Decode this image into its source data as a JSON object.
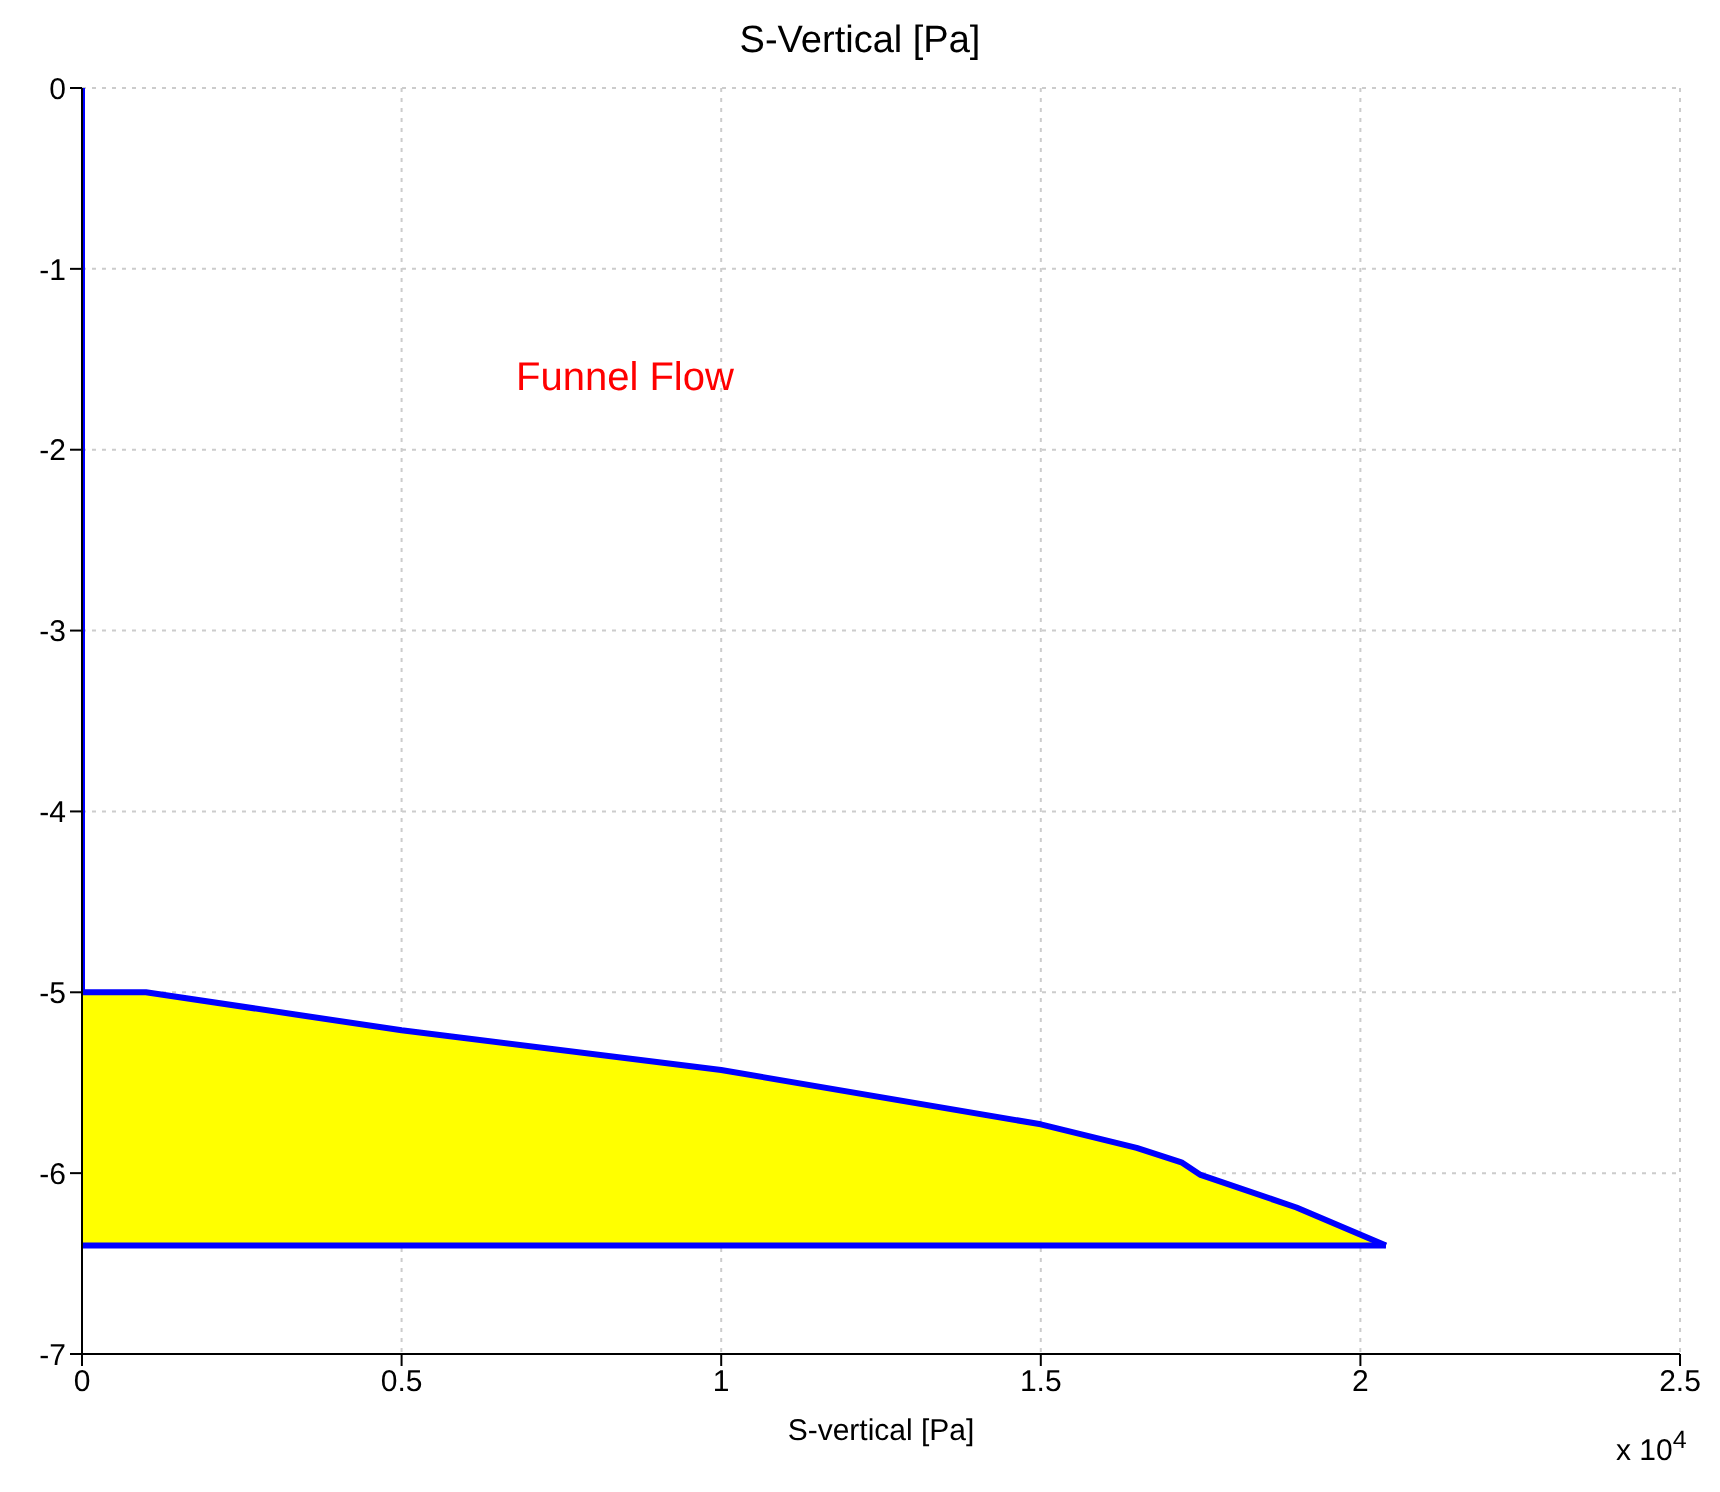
{
  "chart_data": {
    "type": "line",
    "title": "S-Vertical [Pa]",
    "xlabel": "S-vertical [Pa]",
    "annotations": [
      "Funnel Flow",
      "x 10$^{4}$"
    ],
    "xlim": [
      0,
      2.5
    ],
    "xticks": [
      0,
      0.5,
      1,
      1.5,
      2,
      2.5
    ],
    "ylim": [
      -7,
      0
    ],
    "yticks": [
      -7,
      -6,
      -5,
      -4,
      -3,
      -2,
      -1,
      0
    ],
    "grid": true,
    "series": [
      {
        "color": "#0000ff",
        "x": [
          0,
          0,
          0.1,
          0.5,
          1,
          1.5,
          1.65,
          1.72,
          1.75,
          1.9,
          2.04
        ],
        "values": [
          0,
          -5,
          -5,
          -5.21,
          -5.43,
          -5.73,
          -5.86,
          -5.94,
          -6.01,
          -6.19,
          -6.4
        ],
        "lower": [
          null,
          -6.4,
          -6.4,
          -6.4,
          -6.4,
          -6.4,
          -6.4,
          -6.4,
          -6.4,
          -6.4,
          -6.4
        ],
        "upper": [
          null,
          -5,
          -5,
          -5.21,
          -5.43,
          -5.73,
          -5.86,
          -5.94,
          -6.01,
          -6.19,
          -6.4
        ]
      },
      {
        "color": "#0000ff",
        "x": [
          0,
          2.04
        ],
        "values": [
          -6.4,
          -6.4
        ]
      }
    ]
  }
}
